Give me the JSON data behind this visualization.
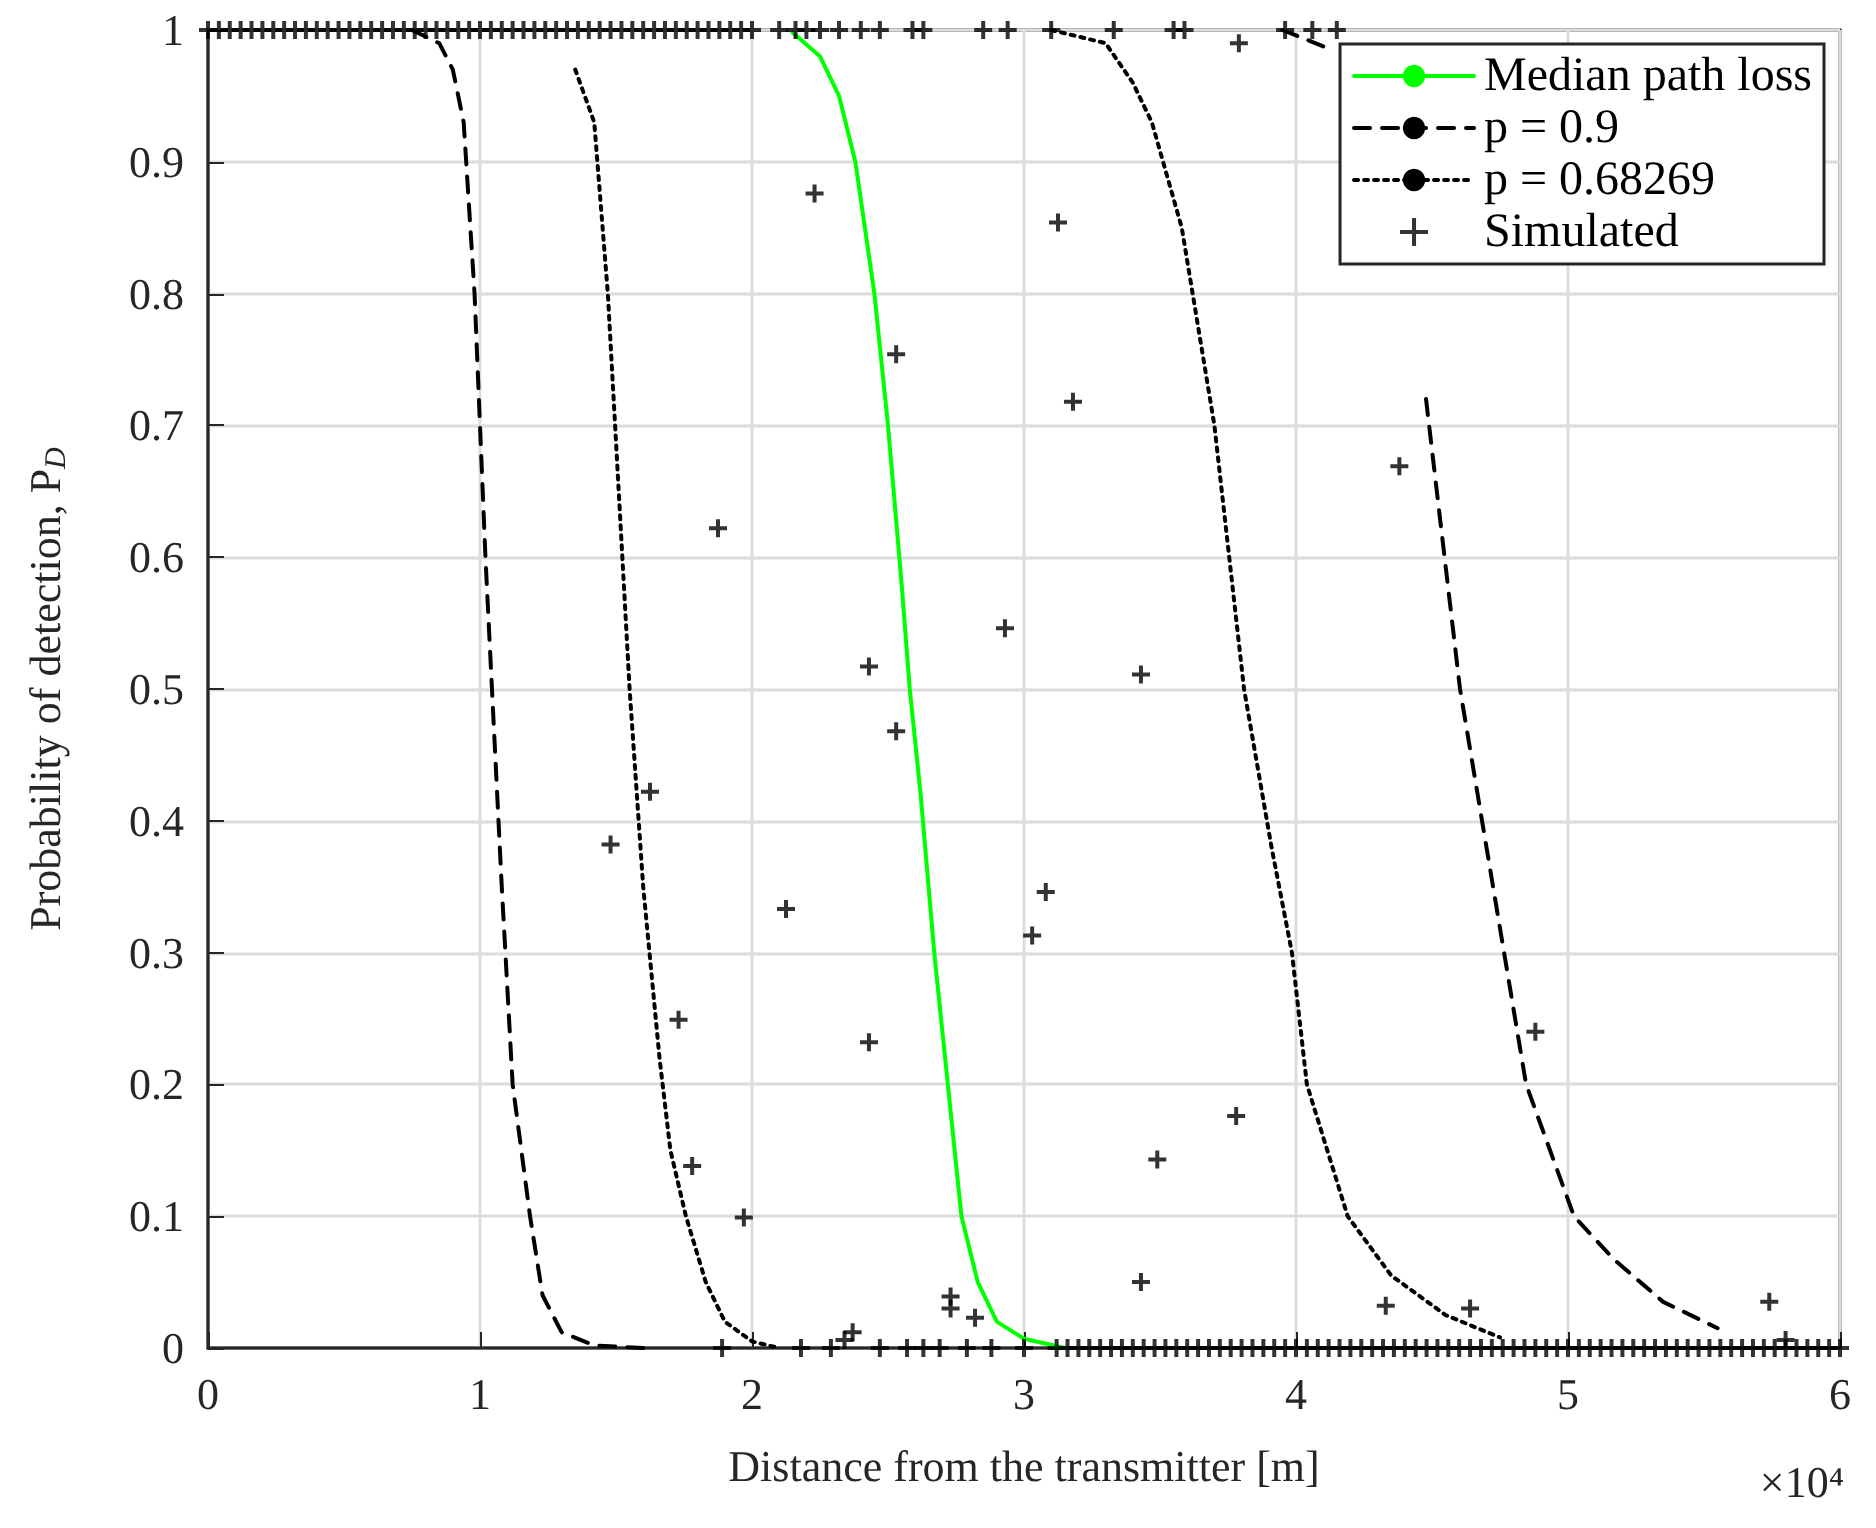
{
  "chart_data": {
    "type": "line",
    "xlabel": "Distance from the transmitter [m]",
    "ylabel": "Probability of detection, P$_{D}$",
    "annotations": [
      "×10⁴"
    ],
    "xlim": [
      0,
      6
    ],
    "xticks": [
      0,
      1,
      2,
      3,
      4,
      5,
      6
    ],
    "ylim": [
      0,
      1
    ],
    "yticks": [
      0,
      0.1,
      0.2,
      0.3,
      0.4,
      0.5,
      0.6,
      0.7,
      0.8,
      0.9,
      1
    ],
    "grid": true,
    "legend": "top right",
    "series": [
      {
        "name": "Median path loss",
        "color": "#00ff00",
        "line_style": "solid",
        "marker": "none",
        "x": [
          2.15,
          2.25,
          2.32,
          2.38,
          2.45,
          2.5,
          2.55,
          2.58,
          2.62,
          2.67,
          2.72,
          2.77,
          2.83,
          2.9,
          3.0,
          3.15
        ],
        "values": [
          0.998,
          0.98,
          0.95,
          0.9,
          0.8,
          0.7,
          0.58,
          0.5,
          0.42,
          0.3,
          0.2,
          0.1,
          0.05,
          0.02,
          0.007,
          0
        ]
      },
      {
        "name": "p = 0.9",
        "color": "#000000",
        "line_style": "dashed",
        "marker": "none",
        "x": [
          0.75,
          0.85,
          0.9,
          0.94,
          0.98,
          1.02,
          1.044,
          1.08,
          1.12,
          1.184,
          1.23,
          1.3,
          1.42,
          1.6,
          null,
          3.95,
          4.12,
          4.28,
          4.38,
          4.478,
          4.603,
          4.765,
          4.846,
          5.022,
          5.17,
          5.35,
          5.55
        ],
        "values": [
          1,
          0.99,
          0.97,
          0.93,
          0.8,
          0.6,
          0.5,
          0.35,
          0.2,
          0.1,
          0.04,
          0.012,
          0.002,
          0,
          null,
          1,
          0.986,
          null,
          null,
          0.72,
          0.5,
          0.3,
          0.2,
          0.1,
          0.067,
          0.035,
          0.015
        ]
      },
      {
        "name": "p = 0.68269",
        "color": "#000000",
        "line_style": "dotted",
        "marker": "none",
        "x": [
          1.35,
          1.42,
          1.47,
          1.51,
          1.55,
          1.6,
          1.66,
          1.7,
          1.757,
          1.83,
          1.9,
          2.0,
          2.1,
          null,
          3.1,
          3.3,
          3.4,
          3.47,
          3.58,
          3.7,
          3.809,
          3.91,
          3.985,
          4.04,
          4.19,
          4.35,
          4.55,
          4.75
        ],
        "values": [
          0.97,
          0.93,
          0.8,
          0.65,
          0.5,
          0.35,
          0.22,
          0.15,
          0.1,
          0.05,
          0.02,
          0.005,
          0,
          null,
          1,
          0.99,
          0.96,
          0.93,
          0.85,
          0.7,
          0.5,
          0.38,
          0.3,
          0.2,
          0.1,
          0.055,
          0.025,
          0.008
        ]
      },
      {
        "name": "Simulated",
        "type": "scatter",
        "color": "#000000",
        "marker": "cross",
        "x": [
          0,
          0.04,
          0.08,
          0.12,
          0.16,
          0.2,
          0.24,
          0.28,
          0.32,
          0.36,
          0.4,
          0.44,
          0.48,
          0.52,
          0.56,
          0.6,
          0.64,
          0.68,
          0.72,
          0.76,
          0.8,
          0.84,
          0.88,
          0.92,
          0.96,
          1.0,
          1.04,
          1.08,
          1.12,
          1.16,
          1.2,
          1.24,
          1.28,
          1.32,
          1.36,
          1.4,
          1.44,
          1.48,
          1.52,
          1.56,
          1.6,
          1.64,
          1.68,
          1.72,
          1.76,
          1.8,
          1.84,
          1.88,
          1.92,
          1.96,
          2.0,
          2.1,
          2.16,
          2.2,
          2.25,
          2.32,
          2.4,
          2.47,
          2.59,
          2.63,
          2.85,
          2.94,
          3.1,
          3.33,
          3.55,
          3.59,
          3.96,
          4.06,
          4.15,
          3.79,
          2.23,
          2.53,
          1.875,
          2.43,
          2.53,
          1.625,
          1.48,
          2.125,
          1.73,
          2.43,
          1.78,
          1.97,
          3.125,
          3.18,
          2.93,
          3.43,
          3.08,
          3.03,
          3.49,
          3.78,
          4.38,
          4.88,
          3.43,
          4.33,
          4.64,
          5.74,
          2.73,
          2.73,
          2.82,
          2.37,
          2.34,
          5.8,
          1.89,
          2.18,
          2.29,
          2.47,
          2.57,
          2.63,
          2.69,
          2.79,
          2.88,
          3.0,
          3.12,
          3.16,
          3.2,
          3.24,
          3.28,
          3.32,
          3.36,
          3.4,
          3.44,
          3.48,
          3.52,
          3.56,
          3.6,
          3.64,
          3.68,
          3.72,
          3.76,
          3.8,
          3.84,
          3.88,
          3.92,
          3.96,
          4.0,
          4.04,
          4.08,
          4.12,
          4.16,
          4.2,
          4.24,
          4.28,
          4.32,
          4.36,
          4.4,
          4.44,
          4.48,
          4.52,
          4.56,
          4.6,
          4.64,
          4.68,
          4.72,
          4.76,
          4.8,
          4.84,
          4.88,
          4.92,
          4.96,
          5.0,
          5.04,
          5.08,
          5.12,
          5.16,
          5.2,
          5.24,
          5.28,
          5.32,
          5.36,
          5.4,
          5.44,
          5.48,
          5.52,
          5.56,
          5.6,
          5.64,
          5.68,
          5.72,
          5.76,
          5.8,
          5.84,
          5.88,
          5.92,
          5.96,
          6.0
        ],
        "values": [
          1,
          1,
          1,
          1,
          1,
          1,
          1,
          1,
          1,
          1,
          1,
          1,
          1,
          1,
          1,
          1,
          1,
          1,
          1,
          1,
          1,
          1,
          1,
          1,
          1,
          1,
          1,
          1,
          1,
          1,
          1,
          1,
          1,
          1,
          1,
          1,
          1,
          1,
          1,
          1,
          1,
          1,
          1,
          1,
          1,
          1,
          1,
          1,
          1,
          1,
          1,
          1,
          1,
          1,
          1,
          1,
          1,
          1,
          1,
          1,
          1,
          1,
          1,
          1,
          1,
          1,
          1,
          1,
          1,
          0.99,
          0.876,
          0.754,
          0.622,
          0.517,
          0.468,
          0.422,
          0.382,
          0.333,
          0.249,
          0.232,
          0.138,
          0.099,
          0.854,
          0.718,
          0.546,
          0.511,
          0.346,
          0.313,
          0.143,
          0.176,
          0.669,
          0.24,
          0.05,
          0.032,
          0.03,
          0.035,
          0.039,
          0.03,
          0.023,
          0.012,
          0.006,
          0.006,
          0,
          0,
          0,
          0,
          0,
          0,
          0,
          0,
          0,
          0,
          0,
          0,
          0,
          0,
          0,
          0,
          0,
          0,
          0,
          0,
          0,
          0,
          0,
          0,
          0,
          0,
          0,
          0,
          0,
          0,
          0,
          0,
          0,
          0,
          0,
          0,
          0,
          0,
          0,
          0,
          0,
          0,
          0,
          0,
          0,
          0,
          0,
          0,
          0,
          0,
          0,
          0,
          0,
          0,
          0,
          0,
          0,
          0,
          0,
          0,
          0,
          0,
          0,
          0,
          0,
          0,
          0,
          0,
          0,
          0,
          0,
          0,
          0,
          0,
          0,
          0,
          0,
          0,
          0,
          0,
          0,
          0,
          0
        ]
      }
    ]
  }
}
